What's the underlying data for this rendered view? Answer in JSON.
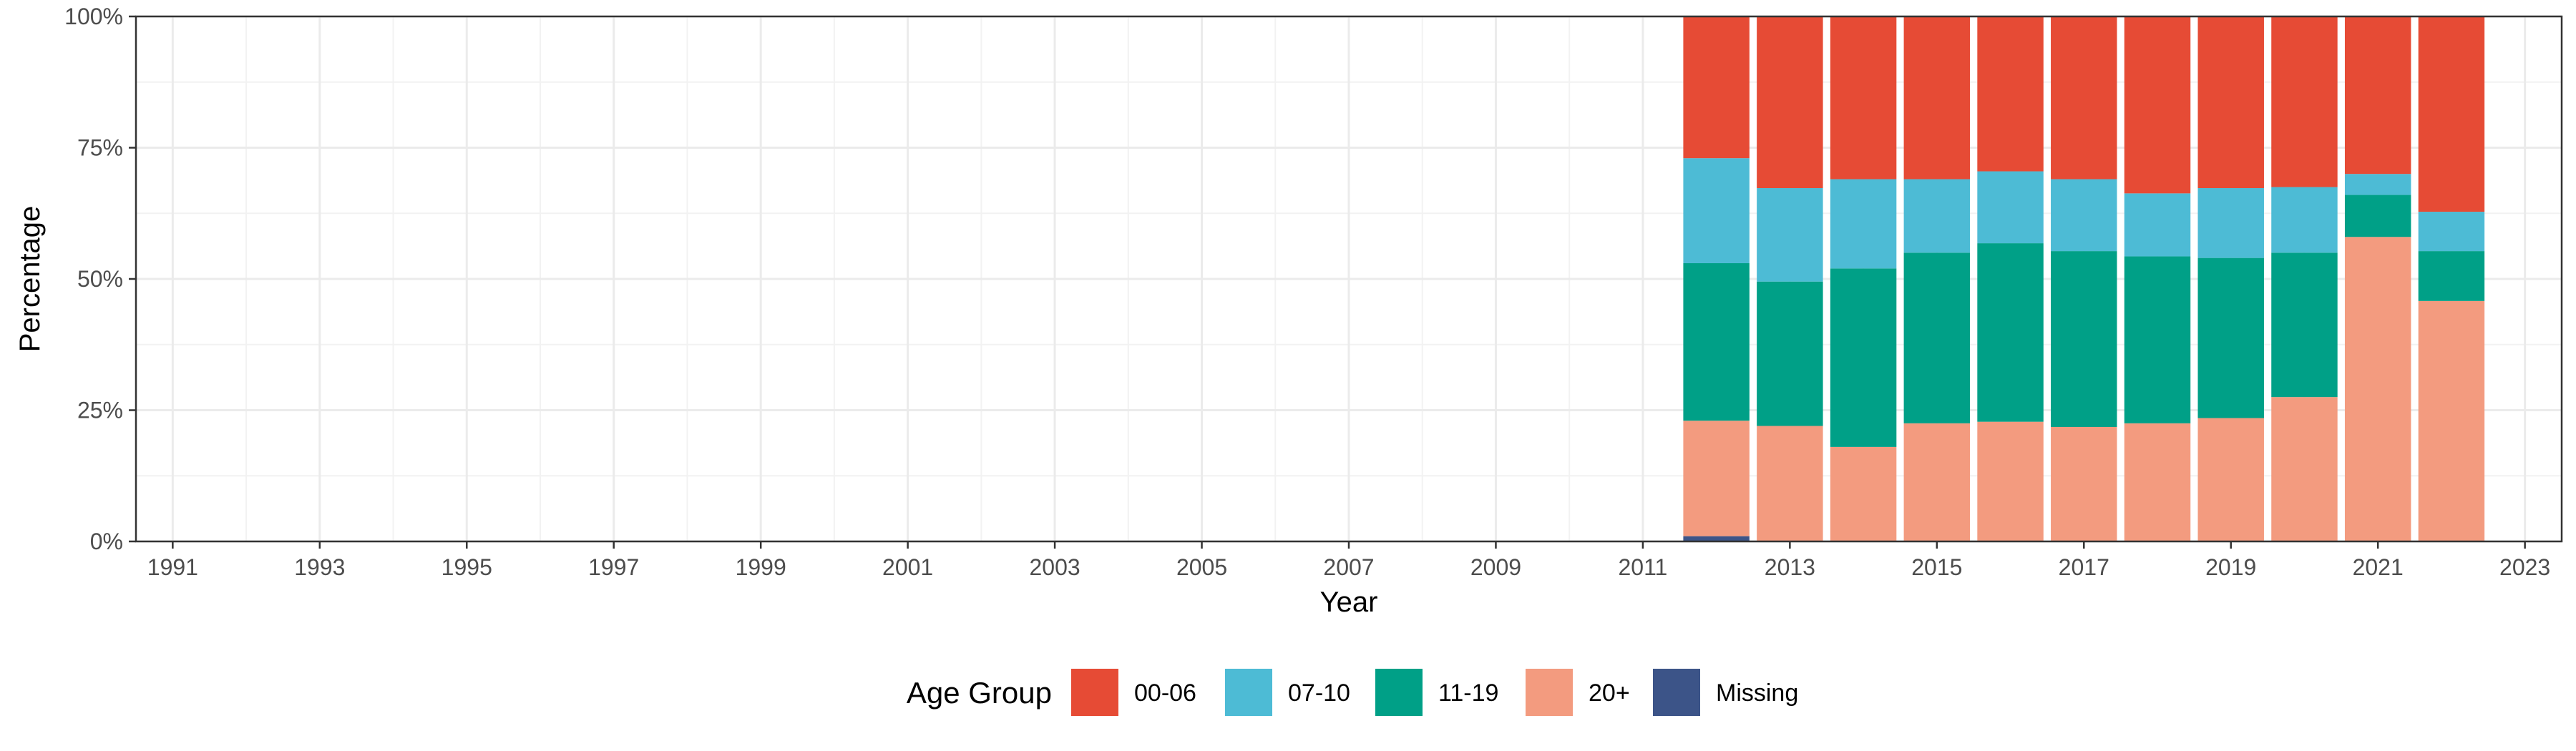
{
  "chart_data": {
    "type": "bar",
    "stacked": true,
    "normalized": true,
    "xlabel": "Year",
    "ylabel": "Percentage",
    "xlim": [
      1990.5,
      2023.5
    ],
    "ylim": [
      0,
      1
    ],
    "x_ticks": [
      1991,
      1993,
      1995,
      1997,
      1999,
      2001,
      2003,
      2005,
      2007,
      2009,
      2011,
      2013,
      2015,
      2017,
      2019,
      2021,
      2023
    ],
    "x_tick_labels": [
      "1991",
      "1993",
      "1995",
      "1997",
      "1999",
      "2001",
      "2003",
      "2005",
      "2007",
      "2009",
      "2011",
      "2013",
      "2015",
      "2017",
      "2019",
      "2021",
      "2023"
    ],
    "y_ticks": [
      0,
      0.25,
      0.5,
      0.75,
      1
    ],
    "y_tick_labels": [
      "0%",
      "25%",
      "50%",
      "75%",
      "100%"
    ],
    "grid": true,
    "legend_position": "bottom",
    "legend_title": "Age Group",
    "categories": [
      2012,
      2013,
      2014,
      2015,
      2016,
      2017,
      2018,
      2019,
      2020,
      2021,
      2022
    ],
    "series": [
      {
        "name": "Missing",
        "color": "#3c5488",
        "values": [
          0.01,
          0,
          0,
          0,
          0,
          0,
          0,
          0,
          0,
          0,
          0
        ]
      },
      {
        "name": "20+",
        "color": "#f39b7f",
        "values": [
          0.22,
          0.22,
          0.18,
          0.225,
          0.228,
          0.218,
          0.225,
          0.235,
          0.275,
          0.58,
          0.458
        ]
      },
      {
        "name": "11-19",
        "color": "#00a087",
        "values": [
          0.3,
          0.275,
          0.34,
          0.325,
          0.34,
          0.335,
          0.318,
          0.305,
          0.275,
          0.08,
          0.095
        ]
      },
      {
        "name": "07-10",
        "color": "#4dbbd5",
        "values": [
          0.2,
          0.178,
          0.17,
          0.14,
          0.137,
          0.137,
          0.12,
          0.133,
          0.125,
          0.04,
          0.075
        ]
      },
      {
        "name": "00-06",
        "color": "#e64b35",
        "values": [
          0.27,
          0.327,
          0.31,
          0.31,
          0.295,
          0.31,
          0.337,
          0.327,
          0.325,
          0.3,
          0.372
        ]
      }
    ],
    "legend_order": [
      "00-06",
      "07-10",
      "11-19",
      "20+",
      "Missing"
    ]
  }
}
